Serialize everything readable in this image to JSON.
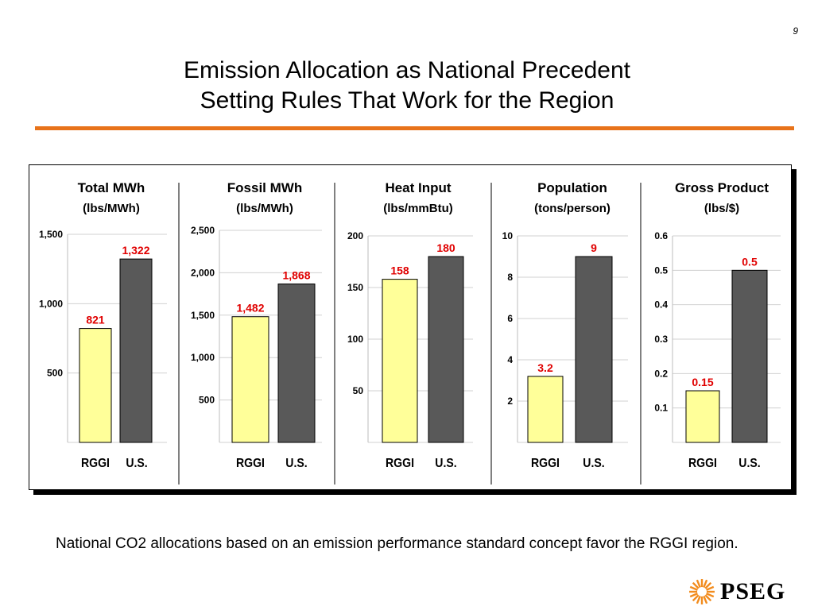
{
  "page_number": "9",
  "title": {
    "line1": "Emission Allocation as National Precedent",
    "line2": "Setting Rules That Work for the Region"
  },
  "colors": {
    "accent_rule": "#e8731a",
    "rggi_bar": "#ffff99",
    "us_bar": "#595959",
    "value_label": "#e00000",
    "logo_sun": "#f28c1e"
  },
  "chart_data": [
    {
      "type": "bar",
      "title": "Total MWh",
      "subtitle": "(lbs/MWh)",
      "categories": [
        "RGGI",
        "U.S."
      ],
      "values": [
        821,
        1322
      ],
      "value_labels": [
        "821",
        "1,322"
      ],
      "yticks": [
        500,
        1000,
        1500
      ],
      "ytick_labels": [
        "500",
        "1,000",
        "1,500"
      ],
      "ylim": [
        0,
        1500
      ]
    },
    {
      "type": "bar",
      "title": "Fossil MWh",
      "subtitle": "(lbs/MWh)",
      "categories": [
        "RGGI",
        "U.S."
      ],
      "values": [
        1482,
        1868
      ],
      "value_labels": [
        "1,482",
        "1,868"
      ],
      "yticks": [
        500,
        1000,
        1500,
        2000,
        2500
      ],
      "ytick_labels": [
        "500",
        "1,000",
        "1,500",
        "2,000",
        "2,500"
      ],
      "ylim": [
        0,
        2500
      ]
    },
    {
      "type": "bar",
      "title": "Heat Input",
      "subtitle": "(lbs/mmBtu)",
      "categories": [
        "RGGI",
        "U.S."
      ],
      "values": [
        158,
        180
      ],
      "value_labels": [
        "158",
        "180"
      ],
      "yticks": [
        50,
        100,
        150,
        200
      ],
      "ytick_labels": [
        "50",
        "100",
        "150",
        "200"
      ],
      "ylim": [
        0,
        200
      ]
    },
    {
      "type": "bar",
      "title": "Population",
      "subtitle": "(tons/person)",
      "categories": [
        "RGGI",
        "U.S."
      ],
      "values": [
        3.2,
        9
      ],
      "value_labels": [
        "3.2",
        "9"
      ],
      "yticks": [
        2,
        4,
        6,
        8,
        10
      ],
      "ytick_labels": [
        "2",
        "4",
        "6",
        "8",
        "10"
      ],
      "ylim": [
        0,
        10
      ]
    },
    {
      "type": "bar",
      "title": "Gross Product",
      "subtitle": "(lbs/$)",
      "categories": [
        "RGGI",
        "U.S."
      ],
      "values": [
        0.15,
        0.5
      ],
      "value_labels": [
        "0.15",
        "0.5"
      ],
      "yticks": [
        0.1,
        0.2,
        0.3,
        0.4,
        0.5,
        0.6
      ],
      "ytick_labels": [
        "0.1",
        "0.2",
        "0.3",
        "0.4",
        "0.5",
        "0.6"
      ],
      "ylim": [
        0,
        0.6
      ]
    }
  ],
  "note": "National CO2 allocations based on an emission performance standard concept favor the RGGI region.",
  "logo": {
    "text": "PSEG",
    "icon": "sun-icon"
  }
}
